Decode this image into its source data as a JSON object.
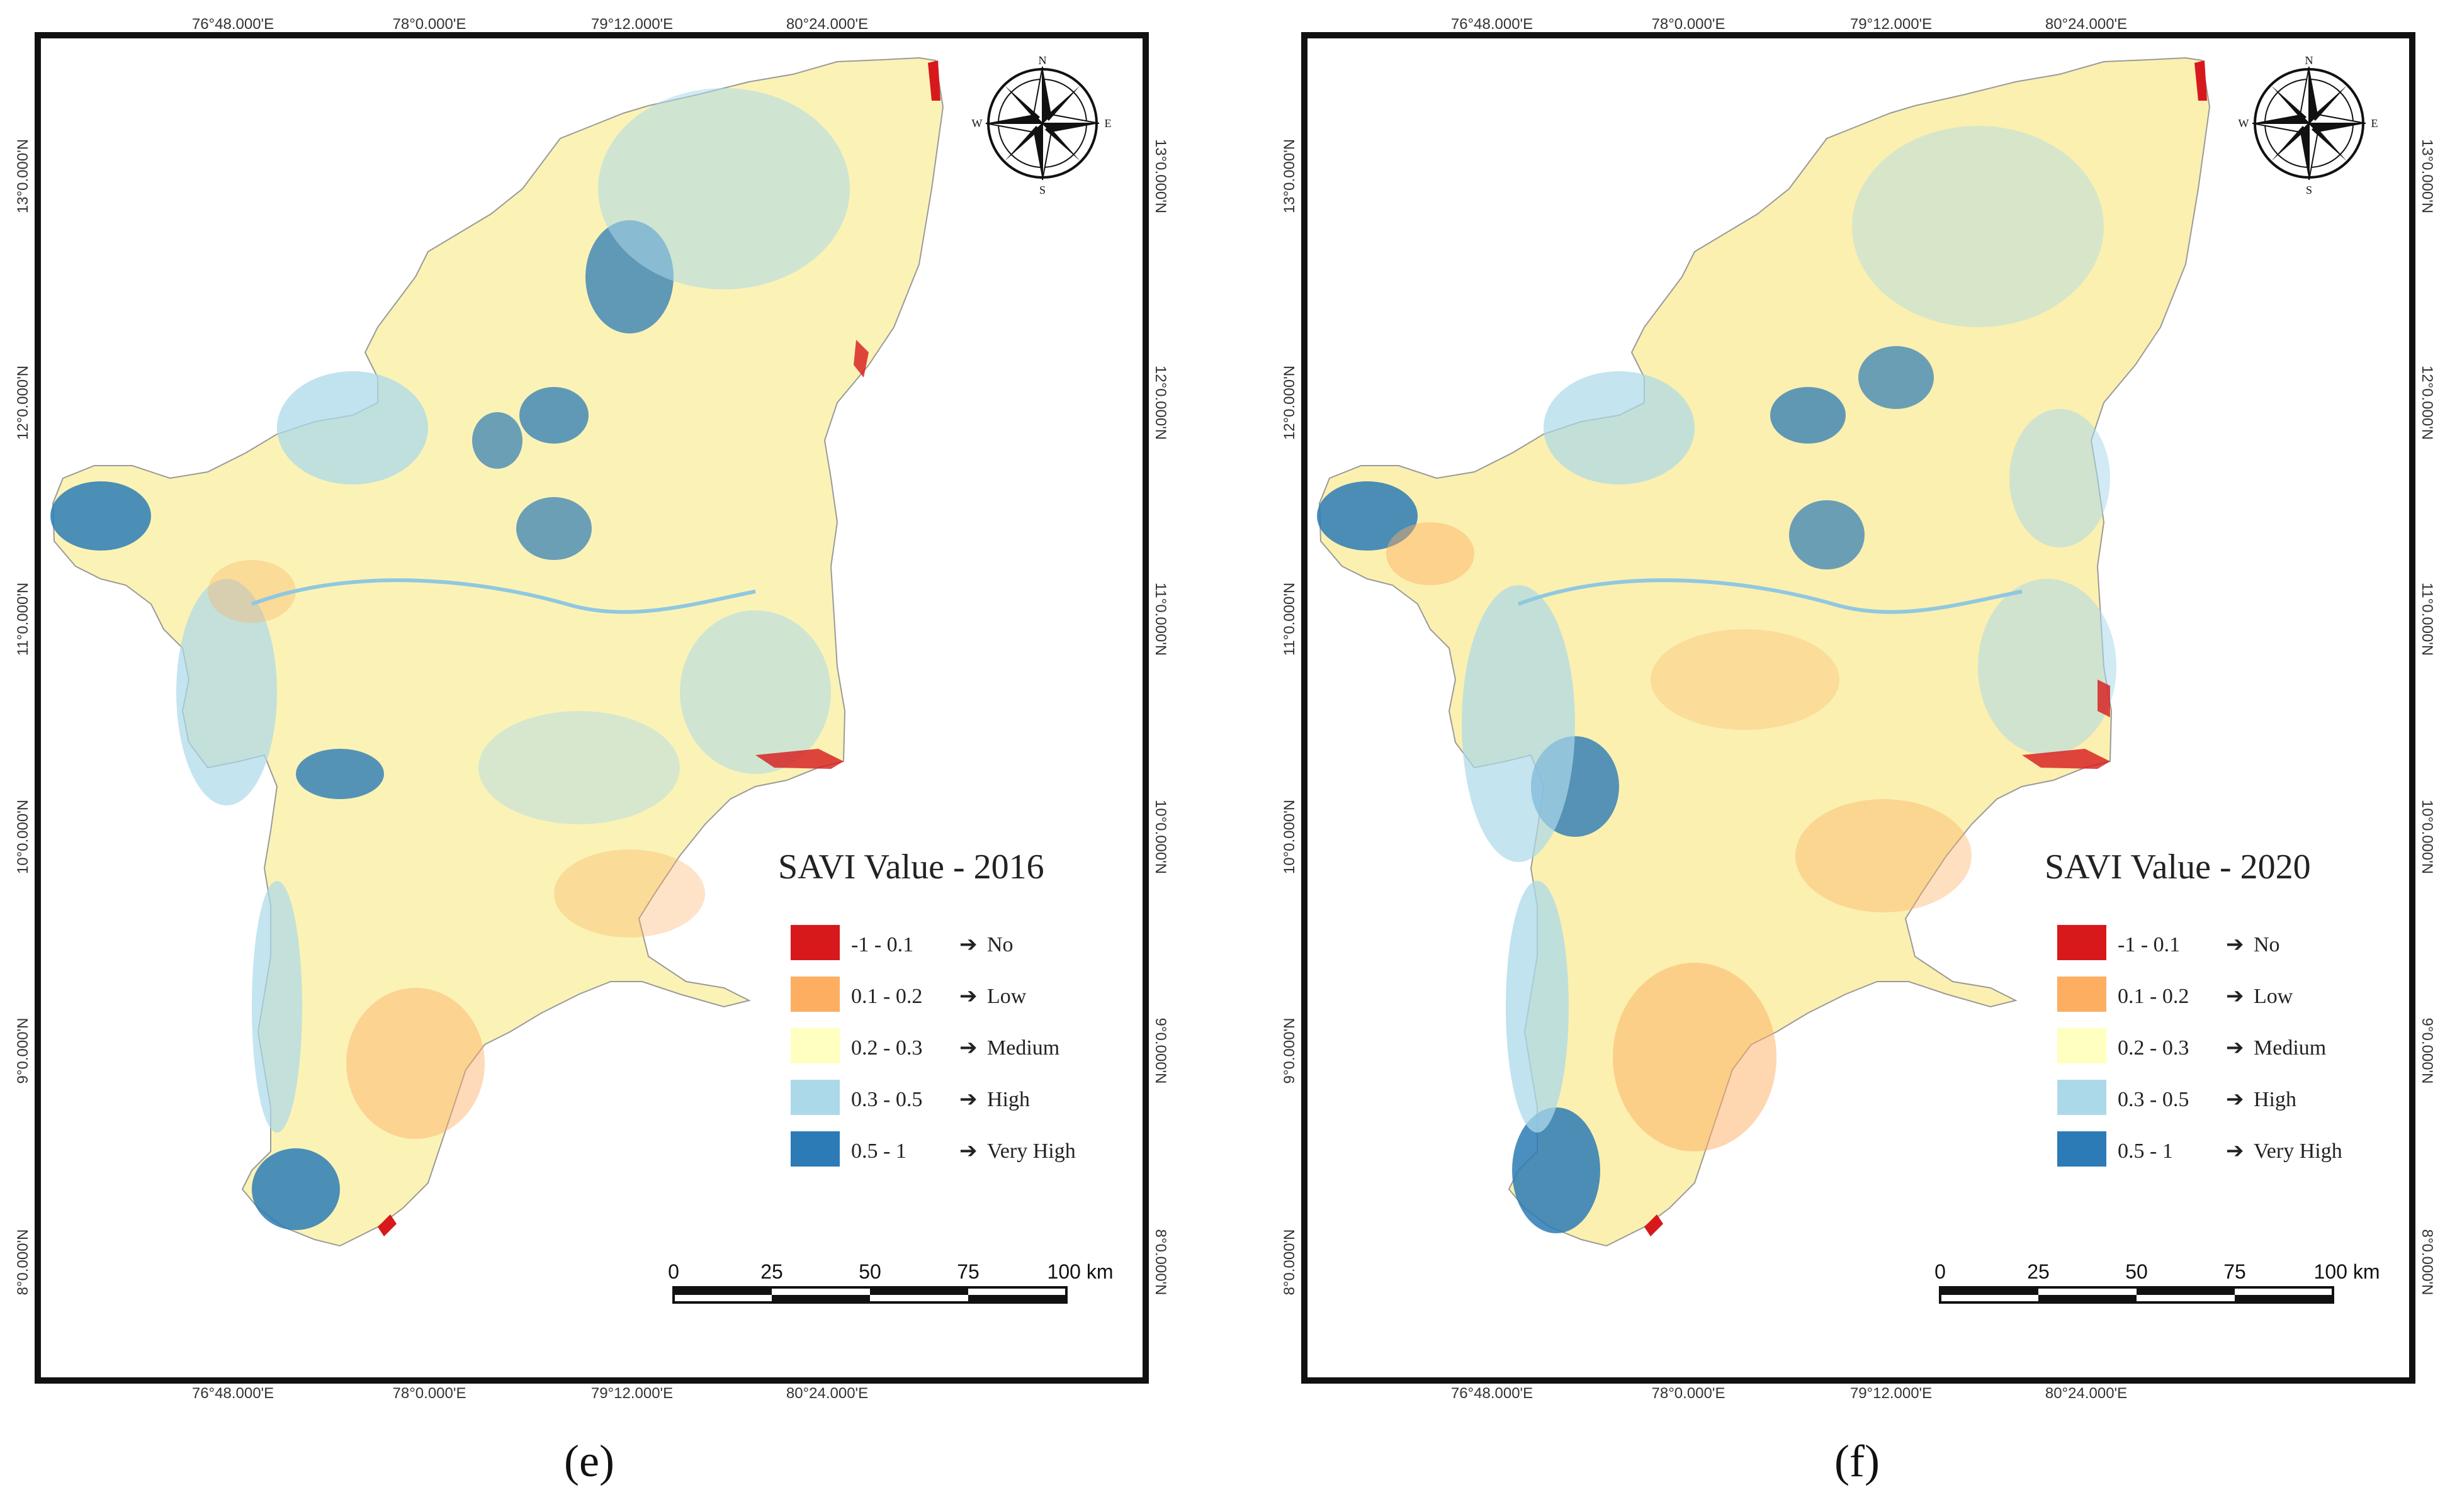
{
  "maps": [
    {
      "title": "SAVI Value - 2016",
      "caption_letter": "e",
      "caption": "(e)"
    },
    {
      "title": "SAVI Value - 2020",
      "caption_letter": "f",
      "caption": "(f)"
    }
  ],
  "axes": {
    "longitude_ticks": [
      "76°48.000'E",
      "78°0.000'E",
      "79°12.000'E",
      "80°24.000'E"
    ],
    "latitude_ticks": [
      "13°0.000'N",
      "12°0.000'N",
      "11°0.000'N",
      "10°0.000'N",
      "9°0.000'N",
      "8°0.000'N"
    ]
  },
  "legend": [
    {
      "range": "-1  -  0.1",
      "label": "No",
      "color": "#d7191c"
    },
    {
      "range": "0.1  -  0.2",
      "label": "Low",
      "color": "#fdae61"
    },
    {
      "range": "0.2  -  0.3",
      "label": "Medium",
      "color": "#ffffbf"
    },
    {
      "range": "0.3  -  0.5",
      "label": "High",
      "color": "#abd9e9"
    },
    {
      "range": "0.5  -  1",
      "label": "Very High",
      "color": "#2c7bb6"
    }
  ],
  "scale_bar": {
    "labels": [
      "0",
      "25",
      "50",
      "75",
      "100 km"
    ]
  },
  "compass": {
    "n": "N",
    "e": "E",
    "s": "S",
    "w": "W"
  }
}
